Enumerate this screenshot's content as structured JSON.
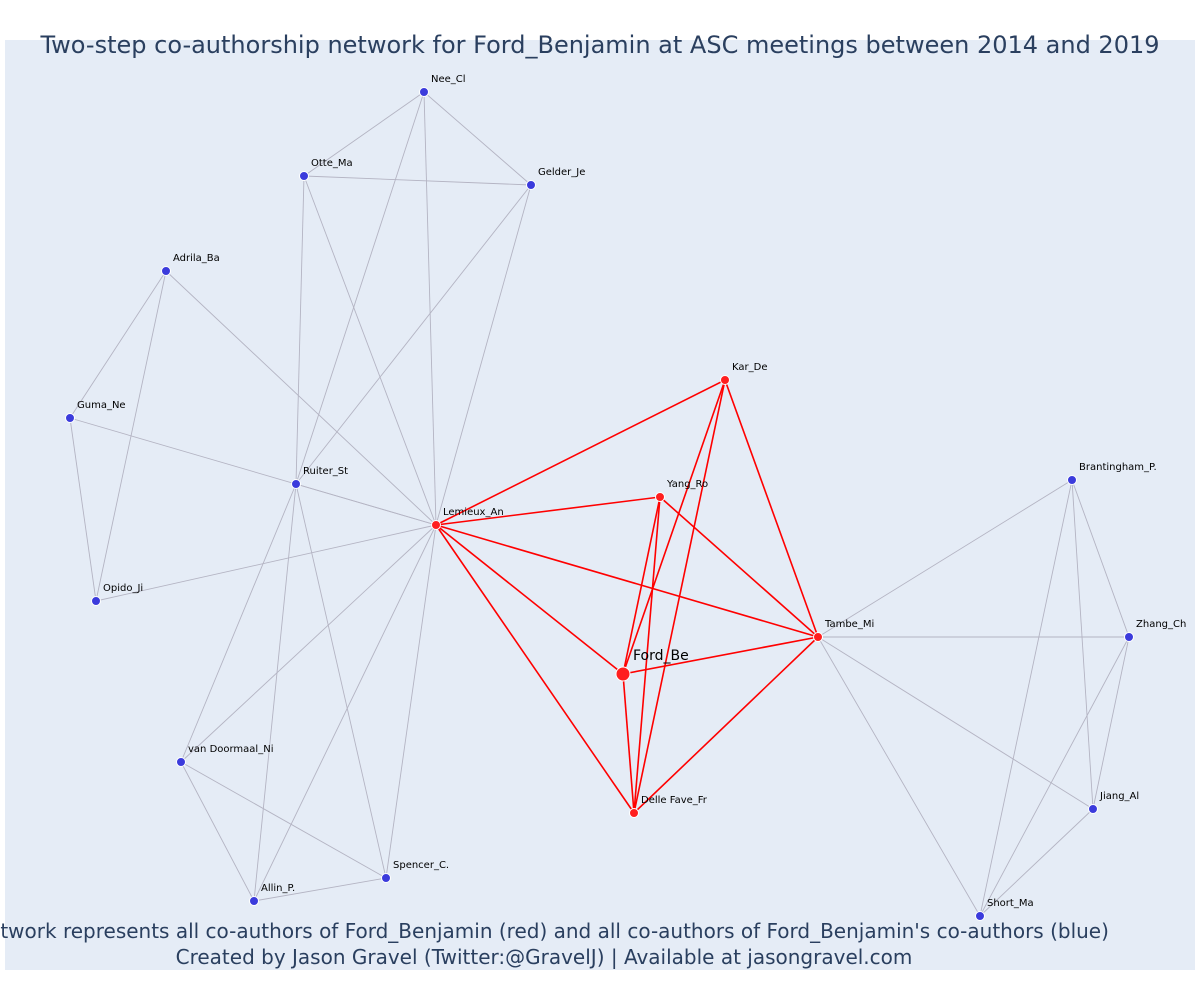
{
  "title": "Two-step co-authorship network for Ford_Benjamin at ASC meetings between 2014 and 2019",
  "caption_line1": "Network represents all co-authors of Ford_Benjamin (red) and all co-authors of Ford_Benjamin's co-authors (blue)",
  "caption_line2": "Created by Jason Gravel (Twitter:@GravelJ) | Available at jasongravel.com",
  "colors": {
    "background": "#e5ecf6",
    "coauthor_node": "#ff1f1f",
    "second_step_node": "#3b3bdc",
    "red_edge": "#ff0000",
    "grey_edge": "#b4b4c3",
    "text": "#2a3f5f"
  },
  "nodes": [
    {
      "id": "ford",
      "label": "Ford_Be",
      "group": "focus"
    },
    {
      "id": "lemieux",
      "label": "Lemieux_An",
      "group": "coauthor"
    },
    {
      "id": "kar",
      "label": "Kar_De",
      "group": "coauthor"
    },
    {
      "id": "yang",
      "label": "Yang_Ro",
      "group": "coauthor"
    },
    {
      "id": "tambe",
      "label": "Tambe_Mi",
      "group": "coauthor"
    },
    {
      "id": "delle",
      "label": "Delle Fave_Fr",
      "group": "coauthor"
    },
    {
      "id": "nee",
      "label": "Nee_Cl",
      "group": "second"
    },
    {
      "id": "otte",
      "label": "Otte_Ma",
      "group": "second"
    },
    {
      "id": "gelder",
      "label": "Gelder_Je",
      "group": "second"
    },
    {
      "id": "adrila",
      "label": "Adrila_Ba",
      "group": "second"
    },
    {
      "id": "guma",
      "label": "Guma_Ne",
      "group": "second"
    },
    {
      "id": "ruiter",
      "label": "Ruiter_St",
      "group": "second"
    },
    {
      "id": "opido",
      "label": "Opido_Ji",
      "group": "second"
    },
    {
      "id": "vandoormaal",
      "label": "van Doormaal_Ni",
      "group": "second"
    },
    {
      "id": "spencer",
      "label": "Spencer_C.",
      "group": "second"
    },
    {
      "id": "allin",
      "label": "Allin_P.",
      "group": "second"
    },
    {
      "id": "brantingham",
      "label": "Brantingham_P.",
      "group": "second"
    },
    {
      "id": "zhang",
      "label": "Zhang_Ch",
      "group": "second"
    },
    {
      "id": "jiang",
      "label": "Jiang_Al",
      "group": "second"
    },
    {
      "id": "short",
      "label": "Short_Ma",
      "group": "second"
    }
  ],
  "edges": [
    {
      "source": "ford",
      "target": "lemieux",
      "type": "red"
    },
    {
      "source": "ford",
      "target": "kar",
      "type": "red"
    },
    {
      "source": "ford",
      "target": "yang",
      "type": "red"
    },
    {
      "source": "ford",
      "target": "tambe",
      "type": "red"
    },
    {
      "source": "ford",
      "target": "delle",
      "type": "red"
    },
    {
      "source": "lemieux",
      "target": "kar",
      "type": "red"
    },
    {
      "source": "lemieux",
      "target": "yang",
      "type": "red"
    },
    {
      "source": "lemieux",
      "target": "tambe",
      "type": "red"
    },
    {
      "source": "lemieux",
      "target": "delle",
      "type": "red"
    },
    {
      "source": "kar",
      "target": "tambe",
      "type": "red"
    },
    {
      "source": "kar",
      "target": "delle",
      "type": "red"
    },
    {
      "source": "yang",
      "target": "tambe",
      "type": "red"
    },
    {
      "source": "yang",
      "target": "delle",
      "type": "red"
    },
    {
      "source": "tambe",
      "target": "delle",
      "type": "red"
    },
    {
      "source": "nee",
      "target": "otte",
      "type": "grey"
    },
    {
      "source": "nee",
      "target": "gelder",
      "type": "grey"
    },
    {
      "source": "nee",
      "target": "lemieux",
      "type": "grey"
    },
    {
      "source": "nee",
      "target": "ruiter",
      "type": "grey"
    },
    {
      "source": "otte",
      "target": "gelder",
      "type": "grey"
    },
    {
      "source": "otte",
      "target": "lemieux",
      "type": "grey"
    },
    {
      "source": "otte",
      "target": "ruiter",
      "type": "grey"
    },
    {
      "source": "gelder",
      "target": "lemieux",
      "type": "grey"
    },
    {
      "source": "gelder",
      "target": "ruiter",
      "type": "grey"
    },
    {
      "source": "adrila",
      "target": "guma",
      "type": "grey"
    },
    {
      "source": "adrila",
      "target": "opido",
      "type": "grey"
    },
    {
      "source": "adrila",
      "target": "lemieux",
      "type": "grey"
    },
    {
      "source": "guma",
      "target": "opido",
      "type": "grey"
    },
    {
      "source": "guma",
      "target": "lemieux",
      "type": "grey"
    },
    {
      "source": "opido",
      "target": "lemieux",
      "type": "grey"
    },
    {
      "source": "ruiter",
      "target": "lemieux",
      "type": "grey"
    },
    {
      "source": "ruiter",
      "target": "vandoormaal",
      "type": "grey"
    },
    {
      "source": "ruiter",
      "target": "spencer",
      "type": "grey"
    },
    {
      "source": "ruiter",
      "target": "allin",
      "type": "grey"
    },
    {
      "source": "vandoormaal",
      "target": "lemieux",
      "type": "grey"
    },
    {
      "source": "vandoormaal",
      "target": "spencer",
      "type": "grey"
    },
    {
      "source": "vandoormaal",
      "target": "allin",
      "type": "grey"
    },
    {
      "source": "spencer",
      "target": "lemieux",
      "type": "grey"
    },
    {
      "source": "spencer",
      "target": "allin",
      "type": "grey"
    },
    {
      "source": "allin",
      "target": "lemieux",
      "type": "grey"
    },
    {
      "source": "tambe",
      "target": "brantingham",
      "type": "grey"
    },
    {
      "source": "tambe",
      "target": "zhang",
      "type": "grey"
    },
    {
      "source": "tambe",
      "target": "jiang",
      "type": "grey"
    },
    {
      "source": "tambe",
      "target": "short",
      "type": "grey"
    },
    {
      "source": "brantingham",
      "target": "zhang",
      "type": "grey"
    },
    {
      "source": "brantingham",
      "target": "jiang",
      "type": "grey"
    },
    {
      "source": "brantingham",
      "target": "short",
      "type": "grey"
    },
    {
      "source": "zhang",
      "target": "jiang",
      "type": "grey"
    },
    {
      "source": "zhang",
      "target": "short",
      "type": "grey"
    },
    {
      "source": "jiang",
      "target": "short",
      "type": "grey"
    }
  ]
}
